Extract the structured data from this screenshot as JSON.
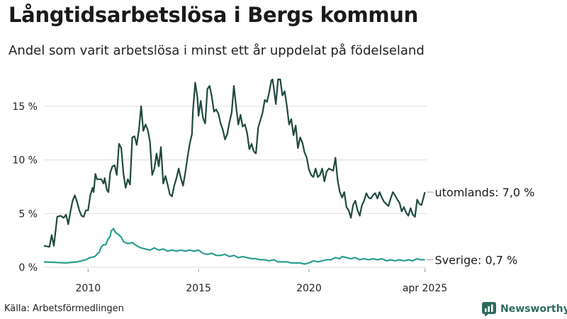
{
  "title": "Långtidsarbetslösa i Bergs kommun",
  "subtitle": "Andel som varit arbetslösa i minst ett år uppdelat på födelseland",
  "source": "Källa: Arbetsförmedlingen",
  "brand": {
    "name": "Newsworthy",
    "icon": "newsworthy-logo-icon",
    "color": "#2e6b5e"
  },
  "chart_data": {
    "type": "line",
    "xlabel": "",
    "ylabel": "",
    "ylim": [
      0,
      17.5
    ],
    "xlim": [
      2008.0,
      2025.33
    ],
    "grid": true,
    "y_ticks": [
      {
        "value": 0,
        "label": "0 %"
      },
      {
        "value": 5,
        "label": "5 %"
      },
      {
        "value": 10,
        "label": "10 %"
      },
      {
        "value": 15,
        "label": "15 %"
      }
    ],
    "x_ticks": [
      {
        "value": 2010,
        "label": "2010"
      },
      {
        "value": 2015,
        "label": "2015"
      },
      {
        "value": 2020,
        "label": "2020"
      },
      {
        "value": 2025.25,
        "label": "apr 2025"
      }
    ],
    "series": [
      {
        "name": "utomlands",
        "end_label": "utomlands: 7,0 %",
        "color": "#1f4a40",
        "points": [
          [
            2008.0,
            2.0
          ],
          [
            2008.25,
            1.9
          ],
          [
            2008.35,
            3.0
          ],
          [
            2008.45,
            2.0
          ],
          [
            2008.6,
            4.7
          ],
          [
            2008.75,
            4.8
          ],
          [
            2008.9,
            4.6
          ],
          [
            2009.0,
            4.9
          ],
          [
            2009.1,
            4.0
          ],
          [
            2009.2,
            5.2
          ],
          [
            2009.3,
            6.2
          ],
          [
            2009.4,
            6.7
          ],
          [
            2009.5,
            6.1
          ],
          [
            2009.6,
            5.3
          ],
          [
            2009.7,
            4.8
          ],
          [
            2009.8,
            4.7
          ],
          [
            2009.9,
            5.3
          ],
          [
            2010.0,
            5.3
          ],
          [
            2010.1,
            6.7
          ],
          [
            2010.2,
            7.4
          ],
          [
            2010.25,
            7.0
          ],
          [
            2010.33,
            8.7
          ],
          [
            2010.4,
            8.2
          ],
          [
            2010.5,
            8.2
          ],
          [
            2010.6,
            8.2
          ],
          [
            2010.7,
            7.8
          ],
          [
            2010.75,
            8.3
          ],
          [
            2010.85,
            7.2
          ],
          [
            2010.92,
            7.0
          ],
          [
            2011.0,
            8.8
          ],
          [
            2011.1,
            9.4
          ],
          [
            2011.2,
            9.5
          ],
          [
            2011.3,
            8.6
          ],
          [
            2011.4,
            11.5
          ],
          [
            2011.5,
            11.1
          ],
          [
            2011.6,
            8.7
          ],
          [
            2011.7,
            7.4
          ],
          [
            2011.8,
            8.2
          ],
          [
            2011.9,
            7.7
          ],
          [
            2012.0,
            12.1
          ],
          [
            2012.1,
            12.2
          ],
          [
            2012.2,
            11.4
          ],
          [
            2012.3,
            12.8
          ],
          [
            2012.4,
            15.0
          ],
          [
            2012.5,
            12.7
          ],
          [
            2012.6,
            13.3
          ],
          [
            2012.7,
            12.8
          ],
          [
            2012.8,
            11.7
          ],
          [
            2012.9,
            8.6
          ],
          [
            2013.0,
            9.2
          ],
          [
            2013.1,
            10.6
          ],
          [
            2013.2,
            9.4
          ],
          [
            2013.3,
            11.2
          ],
          [
            2013.4,
            7.8
          ],
          [
            2013.5,
            8.5
          ],
          [
            2013.6,
            7.7
          ],
          [
            2013.7,
            6.8
          ],
          [
            2013.8,
            6.6
          ],
          [
            2013.9,
            7.6
          ],
          [
            2014.0,
            8.3
          ],
          [
            2014.1,
            9.2
          ],
          [
            2014.2,
            8.3
          ],
          [
            2014.3,
            7.6
          ],
          [
            2014.4,
            8.8
          ],
          [
            2014.5,
            10.2
          ],
          [
            2014.6,
            11.5
          ],
          [
            2014.7,
            12.4
          ],
          [
            2014.75,
            14.6
          ],
          [
            2014.85,
            17.2
          ],
          [
            2014.95,
            15.8
          ],
          [
            2015.0,
            14.1
          ],
          [
            2015.1,
            15.5
          ],
          [
            2015.2,
            13.9
          ],
          [
            2015.3,
            13.4
          ],
          [
            2015.4,
            16.6
          ],
          [
            2015.5,
            16.9
          ],
          [
            2015.6,
            15.9
          ],
          [
            2015.7,
            14.5
          ],
          [
            2015.8,
            14.7
          ],
          [
            2015.9,
            14.3
          ],
          [
            2016.0,
            13.4
          ],
          [
            2016.1,
            12.8
          ],
          [
            2016.2,
            11.9
          ],
          [
            2016.3,
            12.4
          ],
          [
            2016.4,
            13.5
          ],
          [
            2016.5,
            14.4
          ],
          [
            2016.6,
            16.9
          ],
          [
            2016.7,
            15.0
          ],
          [
            2016.8,
            13.3
          ],
          [
            2016.9,
            14.2
          ],
          [
            2017.0,
            13.1
          ],
          [
            2017.1,
            13.3
          ],
          [
            2017.2,
            12.5
          ],
          [
            2017.3,
            11.0
          ],
          [
            2017.4,
            11.5
          ],
          [
            2017.5,
            10.8
          ],
          [
            2017.6,
            10.6
          ],
          [
            2017.7,
            13.0
          ],
          [
            2017.8,
            13.7
          ],
          [
            2017.9,
            14.4
          ],
          [
            2018.0,
            15.6
          ],
          [
            2018.1,
            15.4
          ],
          [
            2018.2,
            16.3
          ],
          [
            2018.3,
            17.4
          ],
          [
            2018.35,
            17.5
          ],
          [
            2018.4,
            16.8
          ],
          [
            2018.5,
            15.2
          ],
          [
            2018.6,
            17.5
          ],
          [
            2018.7,
            17.5
          ],
          [
            2018.8,
            16.0
          ],
          [
            2018.9,
            16.4
          ],
          [
            2019.0,
            15.0
          ],
          [
            2019.1,
            13.3
          ],
          [
            2019.2,
            13.8
          ],
          [
            2019.3,
            12.3
          ],
          [
            2019.4,
            13.2
          ],
          [
            2019.5,
            11.1
          ],
          [
            2019.6,
            12.1
          ],
          [
            2019.7,
            11.6
          ],
          [
            2019.8,
            10.7
          ],
          [
            2019.9,
            10.2
          ],
          [
            2020.0,
            9.1
          ],
          [
            2020.1,
            8.6
          ],
          [
            2020.2,
            8.4
          ],
          [
            2020.3,
            9.2
          ],
          [
            2020.4,
            8.4
          ],
          [
            2020.5,
            8.6
          ],
          [
            2020.6,
            9.2
          ],
          [
            2020.7,
            8.0
          ],
          [
            2020.8,
            8.9
          ],
          [
            2020.9,
            9.2
          ],
          [
            2021.0,
            9.1
          ],
          [
            2021.1,
            9.0
          ],
          [
            2021.2,
            10.2
          ],
          [
            2021.3,
            8.1
          ],
          [
            2021.4,
            7.0
          ],
          [
            2021.5,
            6.5
          ],
          [
            2021.6,
            7.0
          ],
          [
            2021.7,
            5.6
          ],
          [
            2021.8,
            5.3
          ],
          [
            2021.9,
            4.6
          ],
          [
            2022.0,
            5.8
          ],
          [
            2022.1,
            6.2
          ],
          [
            2022.2,
            5.3
          ],
          [
            2022.3,
            4.8
          ],
          [
            2022.4,
            5.8
          ],
          [
            2022.5,
            6.2
          ],
          [
            2022.6,
            6.9
          ],
          [
            2022.7,
            6.5
          ],
          [
            2022.8,
            6.4
          ],
          [
            2022.9,
            6.7
          ],
          [
            2023.0,
            6.9
          ],
          [
            2023.1,
            6.4
          ],
          [
            2023.2,
            7.0
          ],
          [
            2023.3,
            6.5
          ],
          [
            2023.4,
            6.1
          ],
          [
            2023.5,
            5.9
          ],
          [
            2023.6,
            5.7
          ],
          [
            2023.7,
            6.4
          ],
          [
            2023.8,
            7.0
          ],
          [
            2023.9,
            6.7
          ],
          [
            2024.0,
            6.3
          ],
          [
            2024.1,
            6.0
          ],
          [
            2024.2,
            5.2
          ],
          [
            2024.3,
            5.6
          ],
          [
            2024.4,
            5.1
          ],
          [
            2024.5,
            4.8
          ],
          [
            2024.6,
            5.5
          ],
          [
            2024.7,
            4.9
          ],
          [
            2024.8,
            4.7
          ],
          [
            2024.9,
            6.3
          ],
          [
            2025.0,
            5.9
          ],
          [
            2025.1,
            5.8
          ],
          [
            2025.2,
            6.6
          ],
          [
            2025.25,
            7.0
          ]
        ]
      },
      {
        "name": "Sverige",
        "end_label": "Sverige: 0,7 %",
        "color": "#2a9d8f",
        "points": [
          [
            2008.0,
            0.5
          ],
          [
            2008.5,
            0.45
          ],
          [
            2009.0,
            0.4
          ],
          [
            2009.5,
            0.5
          ],
          [
            2009.9,
            0.7
          ],
          [
            2010.1,
            0.9
          ],
          [
            2010.3,
            1.0
          ],
          [
            2010.5,
            1.4
          ],
          [
            2010.6,
            1.9
          ],
          [
            2010.7,
            2.1
          ],
          [
            2010.8,
            2.1
          ],
          [
            2010.9,
            2.6
          ],
          [
            2011.0,
            2.9
          ],
          [
            2011.05,
            3.4
          ],
          [
            2011.15,
            3.6
          ],
          [
            2011.25,
            3.2
          ],
          [
            2011.35,
            3.1
          ],
          [
            2011.5,
            2.8
          ],
          [
            2011.6,
            2.4
          ],
          [
            2011.8,
            2.2
          ],
          [
            2012.0,
            2.3
          ],
          [
            2012.2,
            2.0
          ],
          [
            2012.4,
            1.8
          ],
          [
            2012.6,
            1.7
          ],
          [
            2012.8,
            1.6
          ],
          [
            2013.0,
            1.8
          ],
          [
            2013.2,
            1.6
          ],
          [
            2013.4,
            1.7
          ],
          [
            2013.6,
            1.5
          ],
          [
            2013.8,
            1.6
          ],
          [
            2014.0,
            1.5
          ],
          [
            2014.2,
            1.6
          ],
          [
            2014.4,
            1.5
          ],
          [
            2014.6,
            1.6
          ],
          [
            2014.8,
            1.5
          ],
          [
            2015.0,
            1.6
          ],
          [
            2015.2,
            1.3
          ],
          [
            2015.4,
            1.2
          ],
          [
            2015.6,
            1.3
          ],
          [
            2015.8,
            1.1
          ],
          [
            2016.0,
            1.1
          ],
          [
            2016.2,
            1.2
          ],
          [
            2016.4,
            1.0
          ],
          [
            2016.6,
            1.1
          ],
          [
            2016.8,
            0.9
          ],
          [
            2017.0,
            1.0
          ],
          [
            2017.2,
            0.9
          ],
          [
            2017.4,
            0.8
          ],
          [
            2017.6,
            0.8
          ],
          [
            2017.8,
            0.7
          ],
          [
            2018.0,
            0.7
          ],
          [
            2018.2,
            0.6
          ],
          [
            2018.4,
            0.7
          ],
          [
            2018.6,
            0.5
          ],
          [
            2018.8,
            0.5
          ],
          [
            2019.0,
            0.5
          ],
          [
            2019.2,
            0.4
          ],
          [
            2019.4,
            0.4
          ],
          [
            2019.6,
            0.4
          ],
          [
            2019.8,
            0.3
          ],
          [
            2020.0,
            0.4
          ],
          [
            2020.2,
            0.6
          ],
          [
            2020.4,
            0.5
          ],
          [
            2020.6,
            0.6
          ],
          [
            2020.8,
            0.7
          ],
          [
            2021.0,
            0.7
          ],
          [
            2021.2,
            0.9
          ],
          [
            2021.4,
            0.8
          ],
          [
            2021.5,
            1.0
          ],
          [
            2021.7,
            0.9
          ],
          [
            2021.9,
            0.8
          ],
          [
            2022.1,
            0.9
          ],
          [
            2022.3,
            0.7
          ],
          [
            2022.5,
            0.8
          ],
          [
            2022.7,
            0.7
          ],
          [
            2022.9,
            0.8
          ],
          [
            2023.1,
            0.7
          ],
          [
            2023.3,
            0.8
          ],
          [
            2023.5,
            0.6
          ],
          [
            2023.7,
            0.7
          ],
          [
            2023.9,
            0.6
          ],
          [
            2024.1,
            0.7
          ],
          [
            2024.3,
            0.6
          ],
          [
            2024.5,
            0.7
          ],
          [
            2024.7,
            0.6
          ],
          [
            2024.9,
            0.8
          ],
          [
            2025.05,
            0.7
          ],
          [
            2025.25,
            0.7
          ]
        ]
      }
    ]
  }
}
